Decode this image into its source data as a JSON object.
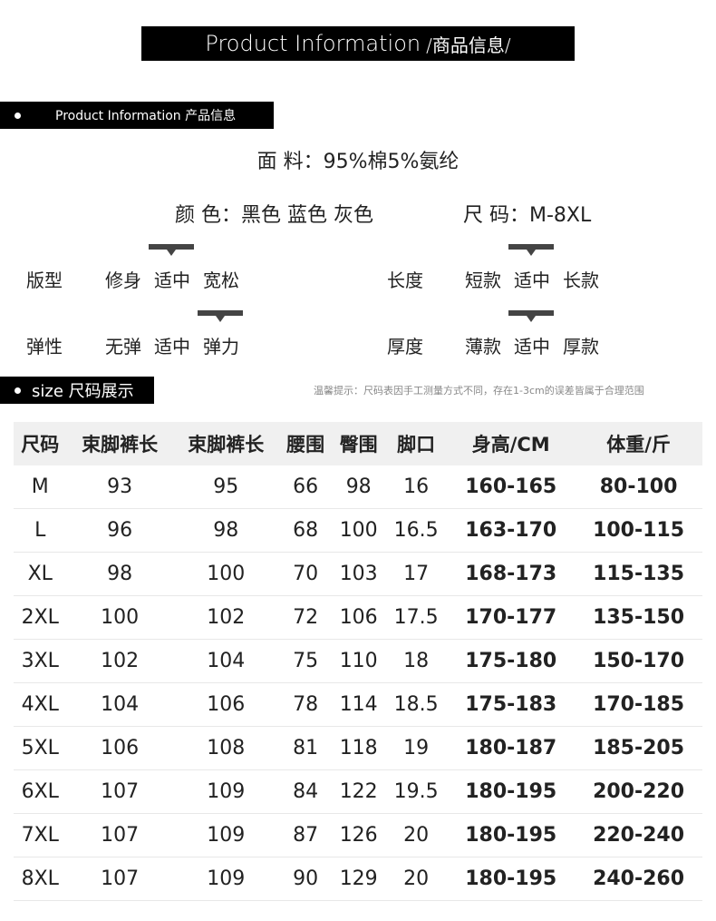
{
  "title": {
    "en": "Product Information",
    "cn": "/商品信息/"
  },
  "section1": "Product Information 产品信息",
  "fabric": "面 料：95%棉5%氨纶",
  "colors": "颜 色：黑色 蓝色 灰色",
  "sizes": "尺 码：M-8XL",
  "attributes": [
    {
      "label": "版型",
      "options": [
        "修身",
        "适中",
        "宽松"
      ],
      "selected": 1
    },
    {
      "label": "长度",
      "options": [
        "短款",
        "适中",
        "长款"
      ],
      "selected": 1
    },
    {
      "label": "弹性",
      "options": [
        "无弹",
        "适中",
        "弹力"
      ],
      "selected": 2
    },
    {
      "label": "厚度",
      "options": [
        "薄款",
        "适中",
        "厚款"
      ],
      "selected": 1
    }
  ],
  "section2": "size 尺码展示",
  "tip": "温馨提示：尺码表因手工测量方式不同，存在1-3cm的误差皆属于合理范围",
  "table": {
    "headers": [
      "尺码",
      "束脚裤长",
      "束脚裤长",
      "腰围",
      "臀围",
      "脚口",
      "身高/CM",
      "体重/斤"
    ],
    "rows": [
      [
        "M",
        "93",
        "95",
        "66",
        "98",
        "16",
        "160-165",
        "80-100"
      ],
      [
        "L",
        "96",
        "98",
        "68",
        "100",
        "16.5",
        "163-170",
        "100-115"
      ],
      [
        "XL",
        "98",
        "100",
        "70",
        "103",
        "17",
        "168-173",
        "115-135"
      ],
      [
        "2XL",
        "100",
        "102",
        "72",
        "106",
        "17.5",
        "170-177",
        "135-150"
      ],
      [
        "3XL",
        "102",
        "104",
        "75",
        "110",
        "18",
        "175-180",
        "150-170"
      ],
      [
        "4XL",
        "104",
        "106",
        "78",
        "114",
        "18.5",
        "175-183",
        "170-185"
      ],
      [
        "5XL",
        "106",
        "108",
        "81",
        "118",
        "19",
        "180-187",
        "185-205"
      ],
      [
        "6XL",
        "107",
        "109",
        "84",
        "122",
        "19.5",
        "180-195",
        "200-220"
      ],
      [
        "7XL",
        "107",
        "109",
        "87",
        "126",
        "20",
        "180-195",
        "220-240"
      ],
      [
        "8XL",
        "107",
        "109",
        "90",
        "129",
        "20",
        "180-195",
        "240-260"
      ]
    ]
  }
}
